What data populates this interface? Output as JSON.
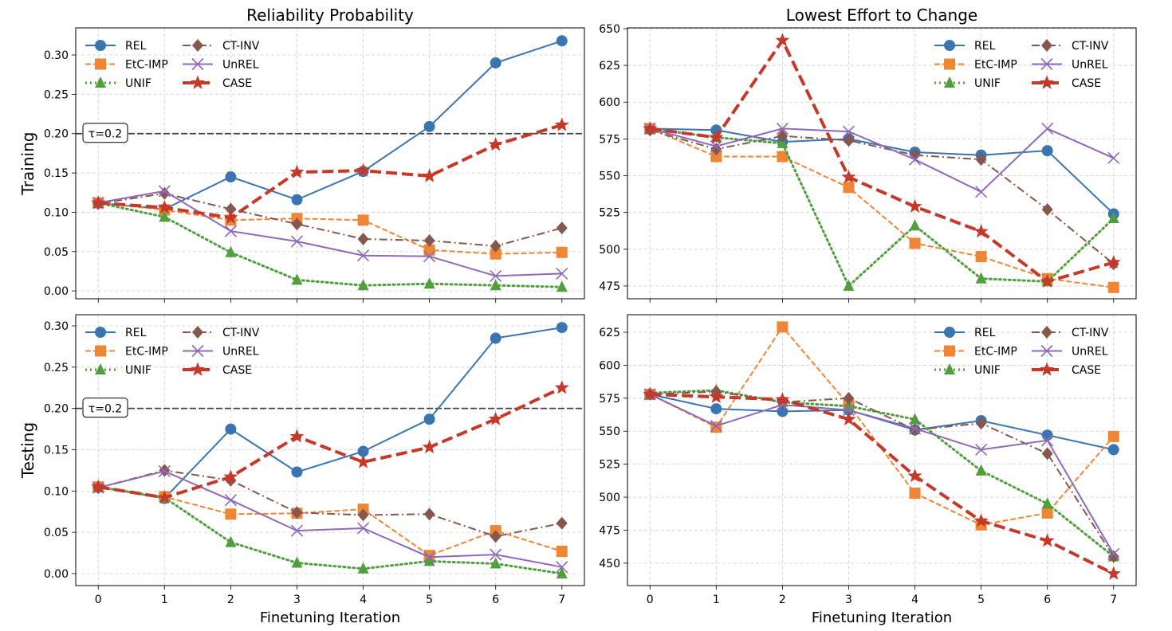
{
  "chart_data": [
    {
      "type": "line",
      "title": "Reliability Probability",
      "ylabel": "Training",
      "xlabel": "",
      "x": [
        0,
        1,
        2,
        3,
        4,
        5,
        6,
        7
      ],
      "xlim": [
        -0.34,
        7.34
      ],
      "ylim": [
        -0.01,
        0.3345
      ],
      "yticks": [
        0.0,
        0.05,
        0.1,
        0.15,
        0.2,
        0.25,
        0.3
      ],
      "ytick_labels": [
        "0.00",
        "0.05",
        "0.10",
        "0.15",
        "0.20",
        "0.25",
        "0.30"
      ],
      "threshold": {
        "value": 0.2,
        "label": "τ=0.2"
      },
      "grid": true,
      "legend": "top-left",
      "series": [
        {
          "name": "REL",
          "values": [
            0.112,
            0.104,
            0.145,
            0.116,
            0.152,
            0.209,
            0.29,
            0.318
          ]
        },
        {
          "name": "EtC-IMP",
          "values": [
            0.112,
            0.103,
            0.09,
            0.092,
            0.09,
            0.052,
            0.047,
            0.049
          ]
        },
        {
          "name": "UNIF",
          "values": [
            0.112,
            0.094,
            0.049,
            0.014,
            0.007,
            0.009,
            0.007,
            0.005
          ]
        },
        {
          "name": "CT-INV",
          "values": [
            0.111,
            0.124,
            0.104,
            0.085,
            0.066,
            0.064,
            0.057,
            0.08
          ]
        },
        {
          "name": "UnREL",
          "values": [
            0.112,
            0.127,
            0.076,
            0.063,
            0.045,
            0.044,
            0.019,
            0.022
          ]
        },
        {
          "name": "CASE",
          "values": [
            0.112,
            0.106,
            0.093,
            0.151,
            0.153,
            0.146,
            0.186,
            0.211
          ]
        }
      ]
    },
    {
      "type": "line",
      "title": "Lowest Effort to Change",
      "ylabel": "",
      "xlabel": "",
      "x": [
        0,
        1,
        2,
        3,
        4,
        5,
        6,
        7
      ],
      "xlim": [
        -0.34,
        7.34
      ],
      "ylim": [
        466.3,
        650.5
      ],
      "yticks": [
        475,
        500,
        525,
        550,
        575,
        600,
        625,
        650
      ],
      "ytick_labels": [
        "475",
        "500",
        "525",
        "550",
        "575",
        "600",
        "625",
        "650"
      ],
      "grid": true,
      "legend": "top-right",
      "series": [
        {
          "name": "REL",
          "values": [
            582,
            581,
            573,
            575,
            566,
            564,
            567,
            524
          ]
        },
        {
          "name": "EtC-IMP",
          "values": [
            582,
            563,
            563,
            542,
            504,
            495,
            480,
            474
          ]
        },
        {
          "name": "UNIF",
          "values": [
            582,
            576,
            572,
            475,
            516,
            480,
            478,
            521
          ]
        },
        {
          "name": "CT-INV",
          "values": [
            581,
            568,
            577,
            574,
            564,
            561,
            527,
            490
          ]
        },
        {
          "name": "UnREL",
          "values": [
            582,
            570,
            582,
            580,
            561,
            539,
            582,
            562
          ]
        },
        {
          "name": "CASE",
          "values": [
            582,
            576,
            642,
            549,
            529,
            512,
            478,
            491
          ]
        }
      ]
    },
    {
      "type": "line",
      "title": "",
      "ylabel": "Testing",
      "xlabel": "Finetuning Iteration",
      "x": [
        0,
        1,
        2,
        3,
        4,
        5,
        6,
        7
      ],
      "xtick_labels": [
        "0",
        "1",
        "2",
        "3",
        "4",
        "5",
        "6",
        "7"
      ],
      "xlim": [
        -0.34,
        7.34
      ],
      "ylim": [
        -0.0145,
        0.3135
      ],
      "yticks": [
        0.0,
        0.05,
        0.1,
        0.15,
        0.2,
        0.25,
        0.3
      ],
      "ytick_labels": [
        "0.00",
        "0.05",
        "0.10",
        "0.15",
        "0.20",
        "0.25",
        "0.30"
      ],
      "threshold": {
        "value": 0.2,
        "label": "τ=0.2"
      },
      "grid": true,
      "legend": "top-left",
      "series": [
        {
          "name": "REL",
          "values": [
            0.105,
            0.091,
            0.175,
            0.123,
            0.148,
            0.187,
            0.285,
            0.298
          ]
        },
        {
          "name": "EtC-IMP",
          "values": [
            0.105,
            0.093,
            0.072,
            0.073,
            0.078,
            0.022,
            0.052,
            0.027
          ]
        },
        {
          "name": "UNIF",
          "values": [
            0.105,
            0.092,
            0.038,
            0.013,
            0.006,
            0.015,
            0.012,
            0.0
          ]
        },
        {
          "name": "CT-INV",
          "values": [
            0.104,
            0.125,
            0.113,
            0.074,
            0.071,
            0.072,
            0.045,
            0.061
          ]
        },
        {
          "name": "UnREL",
          "values": [
            0.104,
            0.124,
            0.089,
            0.052,
            0.055,
            0.02,
            0.023,
            0.008
          ]
        },
        {
          "name": "CASE",
          "values": [
            0.105,
            0.092,
            0.117,
            0.166,
            0.135,
            0.153,
            0.187,
            0.225
          ]
        }
      ]
    },
    {
      "type": "line",
      "title": "",
      "ylabel": "",
      "xlabel": "Finetuning Iteration",
      "x": [
        0,
        1,
        2,
        3,
        4,
        5,
        6,
        7
      ],
      "xtick_labels": [
        "0",
        "1",
        "2",
        "3",
        "4",
        "5",
        "6",
        "7"
      ],
      "xlim": [
        -0.34,
        7.34
      ],
      "ylim": [
        433,
        638.3
      ],
      "yticks": [
        450,
        475,
        500,
        525,
        550,
        575,
        600,
        625
      ],
      "ytick_labels": [
        "450",
        "475",
        "500",
        "525",
        "550",
        "575",
        "600",
        "625"
      ],
      "grid": true,
      "legend": "top-right",
      "series": [
        {
          "name": "REL",
          "values": [
            578,
            567,
            565,
            566,
            551,
            558,
            547,
            536
          ]
        },
        {
          "name": "EtC-IMP",
          "values": [
            578,
            553,
            629,
            570,
            503,
            479,
            488,
            546
          ]
        },
        {
          "name": "UNIF",
          "values": [
            579,
            581,
            572,
            569,
            559,
            520,
            495,
            455
          ]
        },
        {
          "name": "CT-INV",
          "values": [
            578,
            580,
            572,
            575,
            551,
            556,
            533,
            455
          ]
        },
        {
          "name": "UnREL",
          "values": [
            578,
            554,
            570,
            566,
            552,
            536,
            543,
            457
          ]
        },
        {
          "name": "CASE",
          "values": [
            578,
            576,
            574,
            559,
            516,
            482,
            467,
            442
          ]
        }
      ]
    }
  ],
  "series_styles": {
    "REL": {
      "color": "#3b75af",
      "marker": "circle",
      "line": "solid"
    },
    "EtC-IMP": {
      "color": "#ef8636",
      "marker": "square",
      "line": "dashed"
    },
    "UNIF": {
      "color": "#519e3e",
      "marker": "triangle",
      "line": "dotted"
    },
    "CT-INV": {
      "color": "#84584e",
      "marker": "diamond",
      "line": "dashdot"
    },
    "UnREL": {
      "color": "#8d69b8",
      "marker": "x",
      "line": "solid"
    },
    "CASE": {
      "color": "#c5392b",
      "marker": "star",
      "line": "dashed-thick"
    }
  }
}
